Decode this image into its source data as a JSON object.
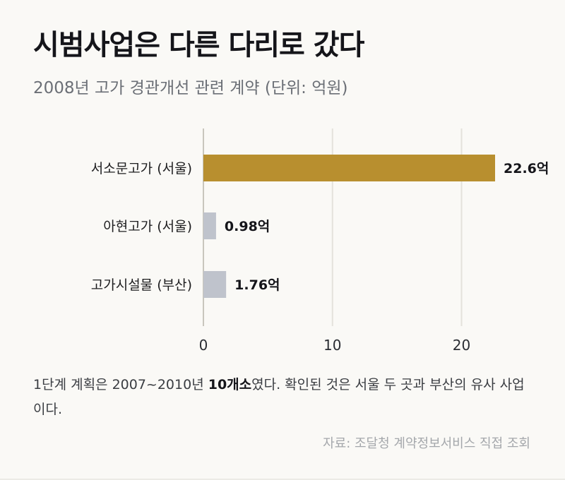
{
  "header": {
    "title": "시범사업은 다른 다리로 갔다",
    "subtitle": "2008년 고가 경관개선 관련 계약 (단위: 억원)"
  },
  "chart_data": {
    "type": "bar",
    "orientation": "horizontal",
    "categories": [
      "서소문고가 (서울)",
      "아현고가 (서울)",
      "고가시설물 (부산)"
    ],
    "values": [
      22.6,
      0.98,
      1.76
    ],
    "value_labels": [
      "22.6억",
      "0.98억",
      "1.76억"
    ],
    "colors": [
      "#b88f2f",
      "#bfc3cc",
      "#bfc3cc"
    ],
    "xlim": [
      0,
      22.6
    ],
    "xticks": [
      "0",
      "10",
      "20"
    ],
    "xtick_values": [
      0,
      10,
      20
    ],
    "grid": true
  },
  "note": {
    "pre": "1단계 계획은 2007~2010년 ",
    "bold": "10개소",
    "post": "였다. 확인된 것은 서울 두 곳과 부산의 유사 사업이다."
  },
  "source": "자료: 조달청 계약정보서비스 직접 조회",
  "colors": {
    "highlight": "#b88f2f",
    "muted": "#bfc3cc",
    "axis": "#c9c6bd",
    "grid": "#e4e2dc",
    "text": "#15151a"
  }
}
